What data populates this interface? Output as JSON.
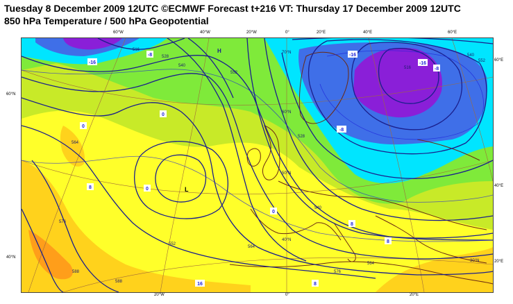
{
  "header": {
    "line1": "Tuesday 8 December 2009 12UTC ©ECMWF Forecast t+216 VT: Thursday 17 December 2009 12UTC",
    "line2": "850 hPa Temperature / 500 hPa Geopotential"
  },
  "grid_labels": {
    "top": [
      "60°W",
      "40°W",
      "20°W",
      "0°",
      "20°E",
      "40°E",
      "60°E"
    ],
    "bottom": [
      "20°W",
      "0°",
      "20°E"
    ],
    "left": [
      "60°N",
      "40°N"
    ],
    "right": [
      "60°E",
      "40°E",
      "20°E"
    ],
    "inner_lat": [
      "70°N",
      "60°N",
      "50°N",
      "40°N",
      "30°N"
    ]
  },
  "pressure_centres": {
    "low": "L",
    "high": "H"
  },
  "temperature_labels": [
    "-16",
    "-16",
    "-16",
    "-8",
    "-8",
    "-8",
    "0",
    "0",
    "0",
    "0",
    "8",
    "8",
    "8",
    "8",
    "16"
  ],
  "geopotential_labels": [
    "516",
    "528",
    "540",
    "552",
    "564",
    "576",
    "588",
    "552",
    "564",
    "540",
    "528",
    "516",
    "588",
    "576",
    "564",
    "552",
    "540"
  ],
  "colors": {
    "coldest": "#8a1fd8",
    "cold": "#3f6fe8",
    "cool": "#00e5ff",
    "mild": "#7fea3a",
    "neutral": "#c8ea28",
    "warm": "#ffff2a",
    "warmer": "#ffd21c",
    "hot": "#ff9e1a",
    "contour": "#1a1f8c",
    "coast": "#6b2a12"
  }
}
